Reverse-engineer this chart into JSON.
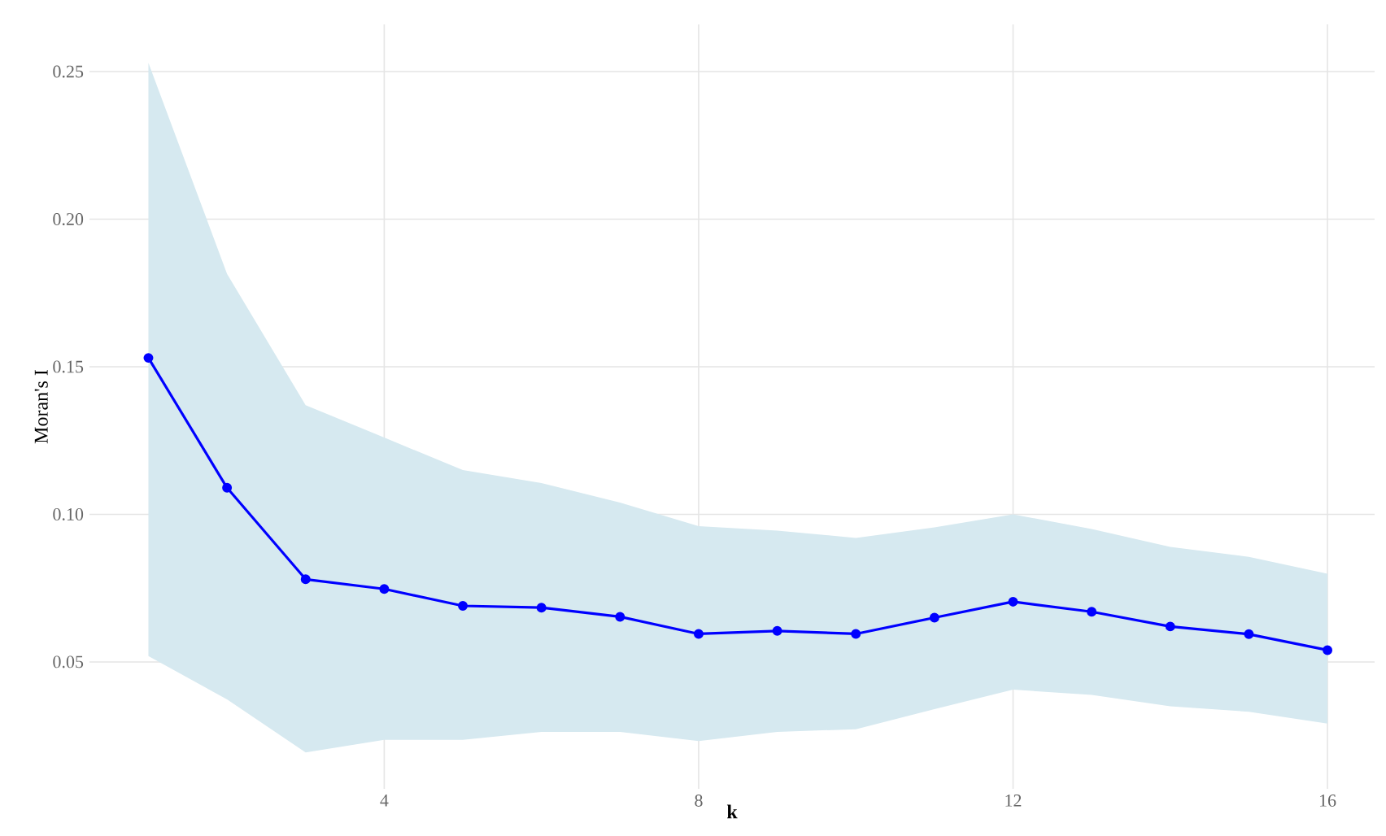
{
  "chart_data": {
    "type": "line",
    "xlabel": "k",
    "ylabel": "Moran's I",
    "x": [
      1,
      2,
      3,
      4,
      5,
      6,
      7,
      8,
      9,
      10,
      11,
      12,
      13,
      14,
      15,
      16
    ],
    "series": [
      {
        "color": "#0000ff",
        "values": [
          0.153,
          0.109,
          0.078,
          0.0747,
          0.069,
          0.0684,
          0.0653,
          0.0595,
          0.0605,
          0.0595,
          0.065,
          0.0704,
          0.067,
          0.062,
          0.0594,
          0.054
        ],
        "upper": [
          0.253,
          0.1815,
          0.137,
          0.126,
          0.115,
          0.1106,
          0.104,
          0.096,
          0.0945,
          0.092,
          0.0956,
          0.1,
          0.095,
          0.089,
          0.0856,
          0.0799
        ],
        "lower": [
          0.052,
          0.0373,
          0.0193,
          0.0236,
          0.0236,
          0.0263,
          0.0263,
          0.0232,
          0.0263,
          0.0272,
          0.034,
          0.0406,
          0.0388,
          0.035,
          0.0331,
          0.0291
        ]
      }
    ],
    "xlim": [
      0.25,
      16.6
    ],
    "ylim": [
      0.007,
      0.266
    ],
    "xticks": [
      4,
      8,
      12,
      16
    ],
    "yticks": [
      {
        "value": 0.05,
        "label": "0.05"
      },
      {
        "value": 0.1,
        "label": "0.10"
      },
      {
        "value": 0.15,
        "label": "0.15"
      },
      {
        "value": 0.2,
        "label": "0.20"
      },
      {
        "value": 0.25,
        "label": "0.25"
      }
    ],
    "grid": true,
    "marker": "circle",
    "line_style": "solid"
  }
}
